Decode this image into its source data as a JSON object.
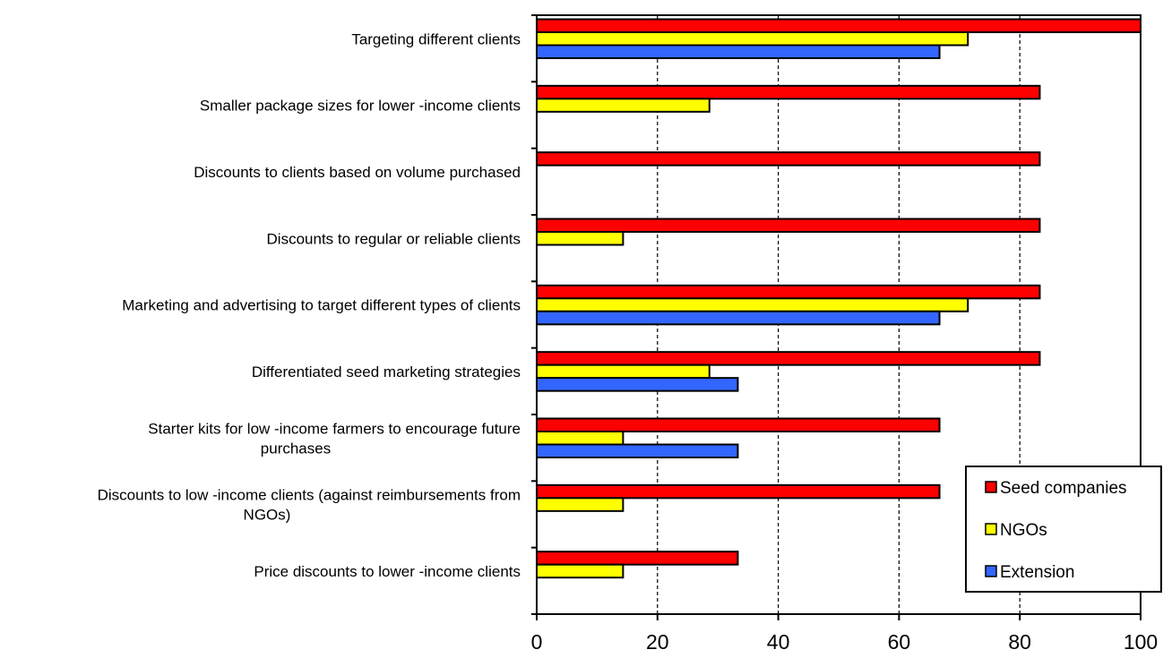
{
  "chart_data": {
    "type": "bar",
    "orientation": "horizontal",
    "categories": [
      "Targeting different clients",
      "Smaller package sizes for lower -income clients",
      "Discounts to clients based on volume purchased",
      "Discounts to regular or reliable clients",
      "Marketing and advertising  to target different types of clients",
      "Differentiated seed marketing strategies",
      "Starter kits for low  -income farmers to encourage future purchases",
      "Discounts to low -income clients (against reimbursements from NGOs)",
      "Price discounts to lower -income clients"
    ],
    "category_lines": [
      [
        "Targeting different clients"
      ],
      [
        "Smaller package sizes for lower -income clients"
      ],
      [
        "Discounts to clients based on volume purchased"
      ],
      [
        "Discounts to regular or reliable clients"
      ],
      [
        "Marketing and advertising  to target different types of clients"
      ],
      [
        "Differentiated seed marketing strategies"
      ],
      [
        "Starter kits for low  -income farmers to encourage future",
        "purchases"
      ],
      [
        "Discounts to low -income clients (against reimbursements from",
        "NGOs)"
      ],
      [
        "Price discounts to lower -income clients"
      ]
    ],
    "series": [
      {
        "name": "Seed companies",
        "color": "#ff0000",
        "values": [
          100,
          83.3,
          83.3,
          83.3,
          83.3,
          83.3,
          66.7,
          66.7,
          33.3
        ]
      },
      {
        "name": "NGOs",
        "color": "#ffff00",
        "values": [
          71.4,
          28.6,
          0,
          14.3,
          71.4,
          28.6,
          14.3,
          14.3,
          14.3
        ]
      },
      {
        "name": "Extension",
        "color": "#3366ff",
        "values": [
          66.7,
          0,
          0,
          0,
          66.7,
          33.3,
          33.3,
          0,
          0
        ]
      }
    ],
    "xlim": [
      0,
      100
    ],
    "xticks": [
      0,
      20,
      40,
      60,
      80,
      100
    ],
    "grid": "vertical-dashed",
    "legend_position": "bottom-right",
    "title": "",
    "xlabel": "",
    "ylabel": ""
  }
}
